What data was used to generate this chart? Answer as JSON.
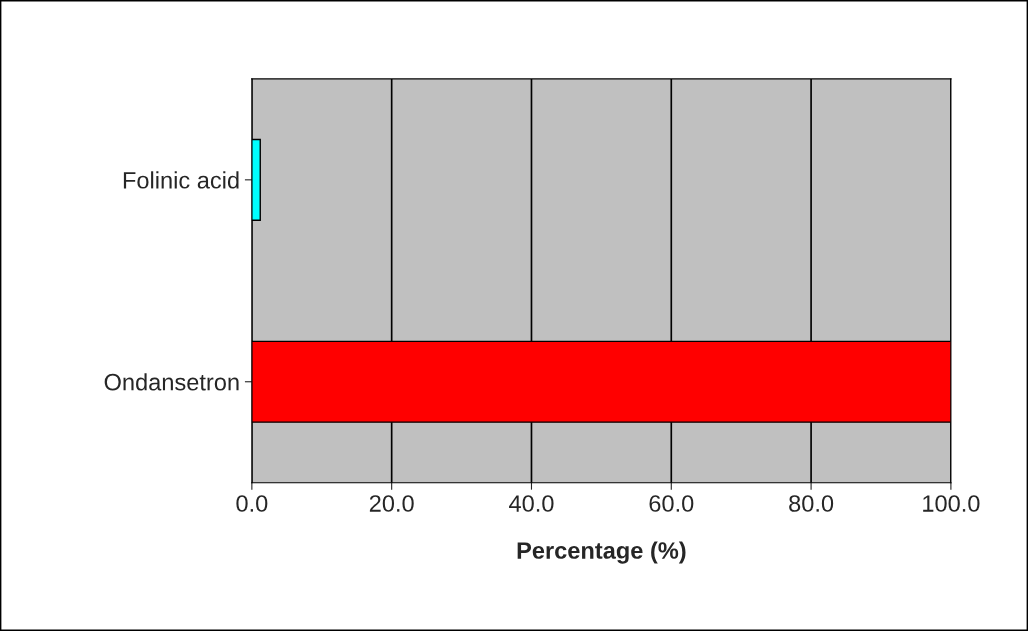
{
  "chart_data": {
    "type": "bar",
    "orientation": "horizontal",
    "xlabel": "Percentage (%)",
    "categories": [
      "Folinic acid",
      "Ondansetron"
    ],
    "values": [
      1.2,
      100
    ],
    "colors": [
      "#00ffff",
      "#ff0000"
    ],
    "xlim": [
      0,
      100
    ],
    "xticks": [
      {
        "value": 0,
        "label": "0.0"
      },
      {
        "value": 20,
        "label": "20.0"
      },
      {
        "value": 40,
        "label": "40.0"
      },
      {
        "value": 60,
        "label": "60.0"
      },
      {
        "value": 80,
        "label": "80.0"
      },
      {
        "value": 100,
        "label": "100.0"
      }
    ],
    "grid": "x"
  }
}
